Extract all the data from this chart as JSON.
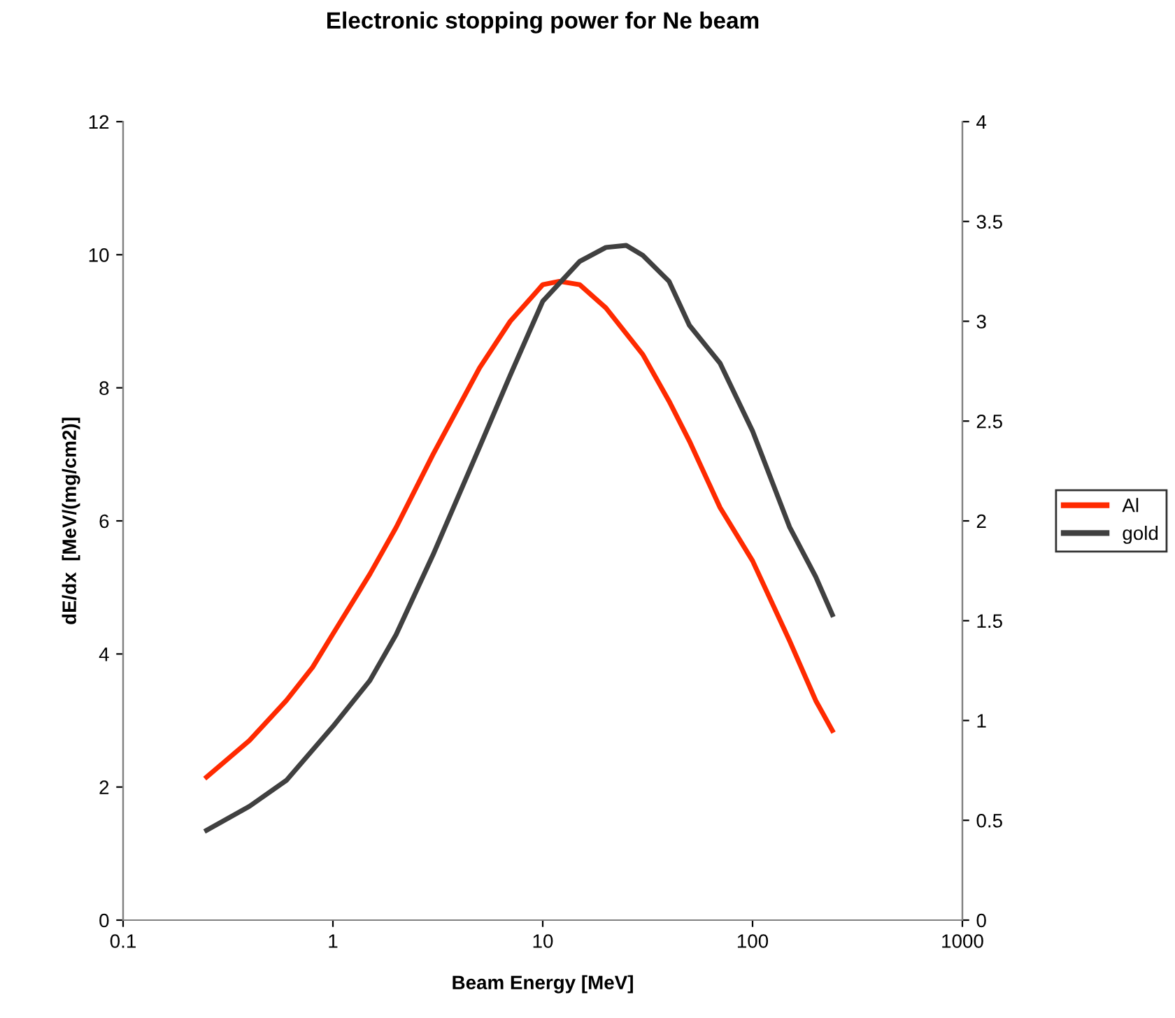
{
  "chart_data": {
    "type": "line",
    "title": "Electronic stopping power for Ne beam",
    "xlabel": "Beam Energy [MeV]",
    "ylabel": "dE/dx  [MeV/(mg/cm2)]",
    "log": "x",
    "grid": false,
    "legend": "right",
    "marker": "none",
    "line_style": "solid",
    "xlim": [
      0.1,
      1000
    ],
    "xticks": [
      0.1,
      1,
      10,
      100,
      1000
    ],
    "ylim": [
      0,
      12
    ],
    "yticks": [
      0,
      2,
      4,
      6,
      8,
      10,
      12
    ],
    "y2lim": [
      0,
      4
    ],
    "y2ticks": [
      0,
      0.5,
      1,
      1.5,
      2,
      2.5,
      3,
      3.5,
      4
    ],
    "series": [
      {
        "name": "Al",
        "color": "#ff2a00",
        "x": [
          0.25,
          0.4,
          0.6,
          0.8,
          1,
          1.5,
          2,
          3,
          5,
          7,
          10,
          12,
          15,
          20,
          30,
          40,
          50,
          70,
          100,
          150,
          200,
          240
        ],
        "values": [
          2.15,
          2.7,
          3.3,
          3.8,
          4.3,
          5.2,
          5.9,
          7.0,
          8.3,
          9.0,
          9.55,
          9.6,
          9.55,
          9.2,
          8.5,
          7.8,
          7.2,
          6.2,
          5.4,
          4.2,
          3.3,
          2.85
        ]
      },
      {
        "name": "gold",
        "color": "#404040",
        "axis": "y2",
        "x": [
          0.25,
          0.4,
          0.6,
          1,
          1.5,
          2,
          3,
          5,
          7,
          10,
          15,
          20,
          25,
          30,
          40,
          50,
          70,
          100,
          150,
          200,
          240
        ],
        "values": [
          0.45,
          0.57,
          0.7,
          0.97,
          1.2,
          1.43,
          1.83,
          2.37,
          2.73,
          3.1,
          3.3,
          3.37,
          3.38,
          3.33,
          3.2,
          2.98,
          2.79,
          2.45,
          1.97,
          1.72,
          1.53
        ]
      }
    ]
  }
}
